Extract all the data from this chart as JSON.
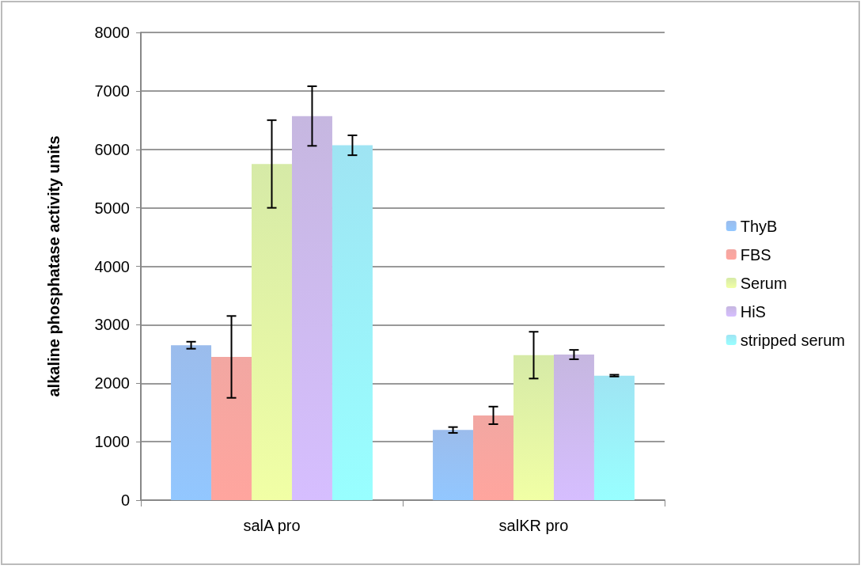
{
  "chart_data": {
    "type": "bar",
    "ylabel": "alkaline phosphatase activity units",
    "categories": [
      "salA pro",
      "salKR pro"
    ],
    "series": [
      {
        "name": "ThyB",
        "color": "#7aa6e6",
        "values": [
          2650,
          1200
        ],
        "errors": [
          60,
          50
        ]
      },
      {
        "name": "FBS",
        "color": "#ee8a84",
        "values": [
          2450,
          1450
        ],
        "errors": [
          700,
          150
        ]
      },
      {
        "name": "Serum",
        "color": "#c9e48a",
        "values": [
          5750,
          2480
        ],
        "errors": [
          750,
          400
        ]
      },
      {
        "name": "HiS",
        "color": "#b39fd6",
        "values": [
          6570,
          2490
        ],
        "errors": [
          510,
          80
        ]
      },
      {
        "name": "stripped serum",
        "color": "#7fdcef",
        "values": [
          6070,
          2130
        ],
        "errors": [
          170,
          15
        ]
      }
    ],
    "ylim": [
      0,
      8000
    ],
    "yticks": [
      0,
      1000,
      2000,
      3000,
      4000,
      5000,
      6000,
      7000,
      8000
    ],
    "grid": "y",
    "legend": "right"
  }
}
